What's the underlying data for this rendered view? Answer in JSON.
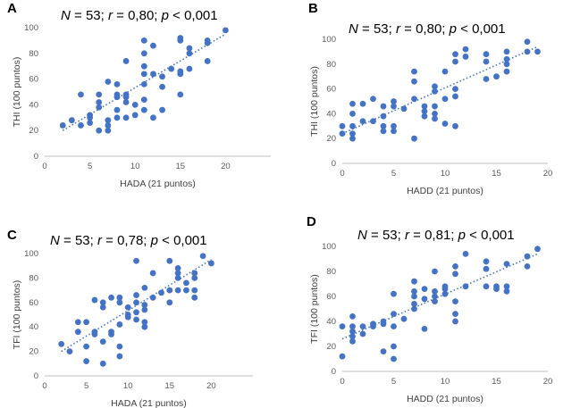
{
  "chart_data": [
    {
      "panel": "A",
      "type": "scatter",
      "stats": {
        "n_label": "N",
        "n": "53",
        "r_label": "r",
        "r": "0,80",
        "p_label": "p",
        "p": "< 0,001"
      },
      "xlabel": "HADA (21 puntos)",
      "ylabel": "THI (100 puntos)",
      "xlim": [
        0,
        25
      ],
      "ylim": [
        0,
        100
      ],
      "xticks": [
        0,
        5,
        10,
        15,
        20
      ],
      "yticks": [
        0,
        20,
        40,
        60,
        80,
        100
      ],
      "trendline": {
        "x": [
          2,
          20
        ],
        "y": [
          20,
          95
        ]
      },
      "points": [
        [
          2,
          24
        ],
        [
          3,
          28
        ],
        [
          4,
          24
        ],
        [
          4,
          48
        ],
        [
          5,
          30
        ],
        [
          5,
          32
        ],
        [
          5,
          26
        ],
        [
          6,
          20
        ],
        [
          6,
          38
        ],
        [
          6,
          42
        ],
        [
          6,
          48
        ],
        [
          7,
          20
        ],
        [
          7,
          24
        ],
        [
          7,
          28
        ],
        [
          7,
          58
        ],
        [
          8,
          30
        ],
        [
          8,
          36
        ],
        [
          8,
          46
        ],
        [
          8,
          48
        ],
        [
          8,
          56
        ],
        [
          9,
          42
        ],
        [
          9,
          46
        ],
        [
          9,
          48
        ],
        [
          9,
          30
        ],
        [
          9,
          74
        ],
        [
          10,
          32
        ],
        [
          10,
          40
        ],
        [
          11,
          36
        ],
        [
          11,
          44
        ],
        [
          11,
          56
        ],
        [
          11,
          64
        ],
        [
          11,
          70
        ],
        [
          11,
          80
        ],
        [
          11,
          90
        ],
        [
          12,
          30
        ],
        [
          12,
          64
        ],
        [
          12,
          86
        ],
        [
          13,
          36
        ],
        [
          13,
          54
        ],
        [
          13,
          62
        ],
        [
          14,
          68
        ],
        [
          15,
          48
        ],
        [
          15,
          64
        ],
        [
          15,
          66
        ],
        [
          15,
          90
        ],
        [
          15,
          92
        ],
        [
          16,
          68
        ],
        [
          16,
          80
        ],
        [
          16,
          84
        ],
        [
          18,
          74
        ],
        [
          18,
          88
        ],
        [
          18,
          90
        ],
        [
          20,
          98
        ]
      ]
    },
    {
      "panel": "B",
      "type": "scatter",
      "stats": {
        "n_label": "N",
        "n": "53",
        "r_label": "r",
        "r": "0,80",
        "p_label": "p",
        "p": "< 0,001"
      },
      "xlabel": "HADD (21 puntos)",
      "ylabel": "THI (100 puntos)",
      "xlim": [
        0,
        20
      ],
      "ylim": [
        0,
        100
      ],
      "xticks": [
        0,
        5,
        10,
        15,
        20
      ],
      "yticks": [
        0,
        20,
        40,
        60,
        80,
        100
      ],
      "trendline": {
        "x": [
          0,
          19
        ],
        "y": [
          24,
          94
        ]
      },
      "points": [
        [
          0,
          24
        ],
        [
          0,
          30
        ],
        [
          1,
          20
        ],
        [
          1,
          24
        ],
        [
          1,
          30
        ],
        [
          1,
          40
        ],
        [
          1,
          48
        ],
        [
          2,
          34
        ],
        [
          2,
          48
        ],
        [
          3,
          34
        ],
        [
          3,
          52
        ],
        [
          4,
          26
        ],
        [
          4,
          30
        ],
        [
          4,
          38
        ],
        [
          4,
          46
        ],
        [
          5,
          26
        ],
        [
          5,
          30
        ],
        [
          5,
          46
        ],
        [
          5,
          50
        ],
        [
          6,
          44
        ],
        [
          7,
          20
        ],
        [
          7,
          52
        ],
        [
          7,
          66
        ],
        [
          7,
          74
        ],
        [
          8,
          38
        ],
        [
          8,
          42
        ],
        [
          8,
          46
        ],
        [
          9,
          36
        ],
        [
          9,
          40
        ],
        [
          9,
          46
        ],
        [
          9,
          58
        ],
        [
          9,
          62
        ],
        [
          10,
          32
        ],
        [
          10,
          52
        ],
        [
          10,
          74
        ],
        [
          11,
          30
        ],
        [
          11,
          54
        ],
        [
          11,
          60
        ],
        [
          11,
          82
        ],
        [
          11,
          88
        ],
        [
          12,
          86
        ],
        [
          12,
          92
        ],
        [
          14,
          68
        ],
        [
          14,
          82
        ],
        [
          14,
          88
        ],
        [
          15,
          70
        ],
        [
          16,
          74
        ],
        [
          16,
          80
        ],
        [
          16,
          84
        ],
        [
          16,
          90
        ],
        [
          18,
          90
        ],
        [
          18,
          98
        ],
        [
          19,
          90
        ]
      ]
    },
    {
      "panel": "C",
      "type": "scatter",
      "stats": {
        "n_label": "N",
        "n": "53",
        "r_label": "r",
        "r": "0,78",
        "p_label": "p",
        "p": "< 0,001"
      },
      "xlabel": "HADA (21 puntos)",
      "ylabel": "TFI (100 puntos)",
      "xlim": [
        0,
        25
      ],
      "ylim": [
        0,
        100
      ],
      "xticks": [
        0,
        5,
        10,
        15,
        20
      ],
      "yticks": [
        0,
        20,
        40,
        60,
        80,
        100
      ],
      "trendline": {
        "x": [
          2,
          20
        ],
        "y": [
          20,
          95
        ]
      },
      "points": [
        [
          2,
          26
        ],
        [
          3,
          20
        ],
        [
          4,
          36
        ],
        [
          4,
          44
        ],
        [
          5,
          12
        ],
        [
          5,
          24
        ],
        [
          5,
          44
        ],
        [
          6,
          34
        ],
        [
          6,
          36
        ],
        [
          6,
          62
        ],
        [
          7,
          10
        ],
        [
          7,
          28
        ],
        [
          7,
          56
        ],
        [
          7,
          60
        ],
        [
          8,
          34
        ],
        [
          8,
          36
        ],
        [
          8,
          64
        ],
        [
          9,
          16
        ],
        [
          9,
          24
        ],
        [
          9,
          42
        ],
        [
          9,
          60
        ],
        [
          9,
          64
        ],
        [
          10,
          50
        ],
        [
          10,
          56
        ],
        [
          11,
          46
        ],
        [
          11,
          52
        ],
        [
          11,
          60
        ],
        [
          11,
          66
        ],
        [
          11,
          94
        ],
        [
          12,
          40
        ],
        [
          12,
          44
        ],
        [
          12,
          54
        ],
        [
          12,
          58
        ],
        [
          12,
          72
        ],
        [
          13,
          64
        ],
        [
          13,
          84
        ],
        [
          14,
          68
        ],
        [
          15,
          60
        ],
        [
          15,
          70
        ],
        [
          15,
          94
        ],
        [
          16,
          70
        ],
        [
          16,
          80
        ],
        [
          16,
          84
        ],
        [
          16,
          88
        ],
        [
          17,
          70
        ],
        [
          17,
          76
        ],
        [
          18,
          64
        ],
        [
          18,
          70
        ],
        [
          18,
          80
        ],
        [
          18,
          84
        ],
        [
          19,
          98
        ],
        [
          20,
          92
        ],
        [
          10,
          48
        ]
      ]
    },
    {
      "panel": "D",
      "type": "scatter",
      "stats": {
        "n_label": "N",
        "n": "53",
        "r_label": "r",
        "r": "0,81",
        "p_label": "p",
        "p": "< 0,001"
      },
      "xlabel": "HADD (21 puntos)",
      "ylabel": "TFI (100 puntos)",
      "xlim": [
        0,
        20
      ],
      "ylim": [
        0,
        100
      ],
      "xticks": [
        0,
        5,
        10,
        15,
        20
      ],
      "yticks": [
        0,
        20,
        40,
        60,
        80,
        100
      ],
      "trendline": {
        "x": [
          0,
          19
        ],
        "y": [
          26,
          94
        ]
      },
      "points": [
        [
          0,
          12
        ],
        [
          0,
          36
        ],
        [
          1,
          24
        ],
        [
          1,
          28
        ],
        [
          1,
          32
        ],
        [
          1,
          36
        ],
        [
          1,
          44
        ],
        [
          2,
          30
        ],
        [
          2,
          36
        ],
        [
          3,
          36
        ],
        [
          3,
          38
        ],
        [
          4,
          16
        ],
        [
          4,
          38
        ],
        [
          4,
          40
        ],
        [
          5,
          10
        ],
        [
          5,
          20
        ],
        [
          5,
          36
        ],
        [
          5,
          46
        ],
        [
          5,
          62
        ],
        [
          6,
          42
        ],
        [
          7,
          50
        ],
        [
          7,
          54
        ],
        [
          7,
          60
        ],
        [
          7,
          64
        ],
        [
          7,
          72
        ],
        [
          8,
          34
        ],
        [
          8,
          58
        ],
        [
          8,
          66
        ],
        [
          9,
          56
        ],
        [
          9,
          60
        ],
        [
          9,
          64
        ],
        [
          9,
          80
        ],
        [
          10,
          62
        ],
        [
          10,
          66
        ],
        [
          11,
          40
        ],
        [
          11,
          46
        ],
        [
          11,
          56
        ],
        [
          11,
          78
        ],
        [
          11,
          84
        ],
        [
          12,
          68
        ],
        [
          12,
          94
        ],
        [
          14,
          68
        ],
        [
          14,
          82
        ],
        [
          14,
          88
        ],
        [
          15,
          66
        ],
        [
          15,
          68
        ],
        [
          16,
          64
        ],
        [
          16,
          68
        ],
        [
          16,
          86
        ],
        [
          18,
          84
        ],
        [
          18,
          92
        ],
        [
          19,
          98
        ],
        [
          10,
          68
        ]
      ]
    }
  ]
}
